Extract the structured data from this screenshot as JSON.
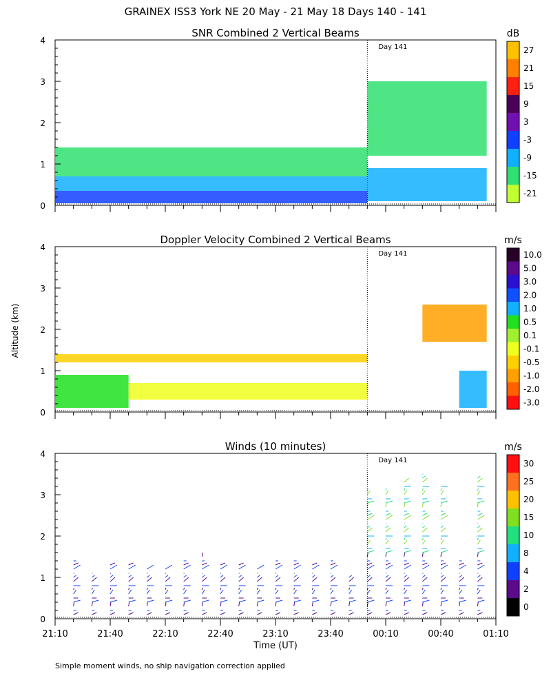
{
  "title": "GRAINEX ISS3 York NE  20 May - 21 May 18 Days 140 - 141",
  "footnote": "Simple moment winds, no ship navigation correction applied",
  "ylabel": "Altitude (km)",
  "xlabel": "Time (UT)",
  "day_marker": "Day 141",
  "x_tick_labels": [
    "21:10",
    "21:40",
    "22:10",
    "22:40",
    "23:10",
    "23:40",
    "00:10",
    "00:40",
    "01:10"
  ],
  "y_tick_labels": [
    "0",
    "1",
    "2",
    "3",
    "4"
  ],
  "panels": [
    {
      "title": "SNR Combined 2 Vertical Beams",
      "unit": "dB",
      "colorbar_labels": [
        "27",
        "21",
        "15",
        "9",
        "3",
        "-3",
        "-9",
        "-15",
        "-21"
      ],
      "colorbar_colors": [
        "#ffc000",
        "#ff8000",
        "#ff2010",
        "#4a0058",
        "#7010b0",
        "#1040ff",
        "#10b0ff",
        "#30e070",
        "#c0ff30"
      ]
    },
    {
      "title": "Doppler Velocity Combined 2 Vertical Beams",
      "unit": "m/s",
      "colorbar_labels": [
        "10.0",
        "5.0",
        "3.0",
        "2.0",
        "1.0",
        "0.5",
        "0.1",
        "-0.1",
        "-0.5",
        "-1.0",
        "-2.0",
        "-3.0"
      ],
      "colorbar_colors": [
        "#280028",
        "#5a0a8a",
        "#2a10d0",
        "#1050ff",
        "#10b0ff",
        "#20e020",
        "#a0f030",
        "#f0ff20",
        "#ffd000",
        "#ffa000",
        "#ff6000",
        "#ff1010"
      ]
    },
    {
      "title": "Winds (10 minutes)",
      "unit": "m/s",
      "colorbar_labels": [
        "30",
        "25",
        "20",
        "15",
        "10",
        "8",
        "4",
        "2",
        "0"
      ],
      "colorbar_colors": [
        "#ff1010",
        "#ff7020",
        "#ffc000",
        "#80e020",
        "#20e080",
        "#10b0ff",
        "#1040ff",
        "#5a0a8a",
        "#000000"
      ]
    }
  ],
  "chart_data": [
    {
      "type": "heatmap",
      "title": "SNR Combined 2 Vertical Beams",
      "unit": "dB",
      "x_range": [
        "21:10",
        "01:10"
      ],
      "y_range_km": [
        0,
        4
      ],
      "day_marker_time": "00:00",
      "colorbar_levels": [
        -21,
        -15,
        -9,
        -3,
        3,
        9,
        15,
        21,
        27
      ],
      "regions": [
        {
          "t_start": "21:10",
          "t_end": "00:00",
          "alt_km": [
            0.05,
            0.35
          ],
          "level_db": -3
        },
        {
          "t_start": "21:10",
          "t_end": "00:00",
          "alt_km": [
            0.35,
            0.7
          ],
          "level_db": -9
        },
        {
          "t_start": "21:10",
          "t_end": "00:00",
          "alt_km": [
            0.7,
            1.4
          ],
          "level_db": -15
        },
        {
          "t_start": "00:00",
          "t_end": "01:05",
          "alt_km": [
            0.1,
            0.9
          ],
          "level_db": -9
        },
        {
          "t_start": "00:00",
          "t_end": "01:05",
          "alt_km": [
            1.2,
            3.0
          ],
          "level_db": -15
        }
      ]
    },
    {
      "type": "heatmap",
      "title": "Doppler Velocity Combined 2 Vertical Beams",
      "unit": "m/s",
      "x_range": [
        "21:10",
        "01:10"
      ],
      "y_range_km": [
        0,
        4
      ],
      "day_marker_time": "00:00",
      "colorbar_levels": [
        -3.0,
        -2.0,
        -1.0,
        -0.5,
        -0.1,
        0.1,
        0.5,
        1.0,
        2.0,
        3.0,
        5.0,
        10.0
      ],
      "regions": [
        {
          "t_start": "21:10",
          "t_end": "21:50",
          "alt_km": [
            0.1,
            0.9
          ],
          "level_ms": 0.5
        },
        {
          "t_start": "21:50",
          "t_end": "00:00",
          "alt_km": [
            0.3,
            0.7
          ],
          "level_ms": -0.1
        },
        {
          "t_start": "21:10",
          "t_end": "00:00",
          "alt_km": [
            1.2,
            1.4
          ],
          "level_ms": -0.5
        },
        {
          "t_start": "00:30",
          "t_end": "01:05",
          "alt_km": [
            1.7,
            2.6
          ],
          "level_ms": -1.0
        },
        {
          "t_start": "00:50",
          "t_end": "01:05",
          "alt_km": [
            0.1,
            1.0
          ],
          "level_ms": 1.0
        }
      ]
    },
    {
      "type": "scatter",
      "title": "Winds (10 minutes)",
      "unit": "m/s",
      "x_range": [
        "21:10",
        "01:10"
      ],
      "y_range_km": [
        0,
        4
      ],
      "day_marker_time": "00:00",
      "colorbar_levels": [
        0,
        2,
        4,
        8,
        10,
        15,
        20,
        25,
        30
      ],
      "profiles": [
        {
          "time": "21:20",
          "alt_km_max": 1.4
        },
        {
          "time": "21:30",
          "alt_km_max": 1.1
        },
        {
          "time": "21:40",
          "alt_km_max": 1.3
        },
        {
          "time": "21:50",
          "alt_km_max": 1.3
        },
        {
          "time": "22:00",
          "alt_km_max": 1.2
        },
        {
          "time": "22:10",
          "alt_km_max": 1.2
        },
        {
          "time": "22:20",
          "alt_km_max": 1.4
        },
        {
          "time": "22:30",
          "alt_km_max": 1.5
        },
        {
          "time": "22:40",
          "alt_km_max": 1.3
        },
        {
          "time": "22:50",
          "alt_km_max": 1.3
        },
        {
          "time": "23:00",
          "alt_km_max": 1.2
        },
        {
          "time": "23:10",
          "alt_km_max": 1.4
        },
        {
          "time": "23:20",
          "alt_km_max": 1.4
        },
        {
          "time": "23:30",
          "alt_km_max": 1.3
        },
        {
          "time": "23:40",
          "alt_km_max": 1.4
        },
        {
          "time": "23:50",
          "alt_km_max": 1.0
        },
        {
          "time": "00:00",
          "alt_km_max": 3.1
        },
        {
          "time": "00:10",
          "alt_km_max": 3.1
        },
        {
          "time": "00:20",
          "alt_km_max": 3.3
        },
        {
          "time": "00:30",
          "alt_km_max": 3.5
        },
        {
          "time": "00:40",
          "alt_km_max": 3.2
        },
        {
          "time": "00:50",
          "alt_km_max": 1.4
        },
        {
          "time": "01:00",
          "alt_km_max": 3.4
        }
      ]
    }
  ]
}
